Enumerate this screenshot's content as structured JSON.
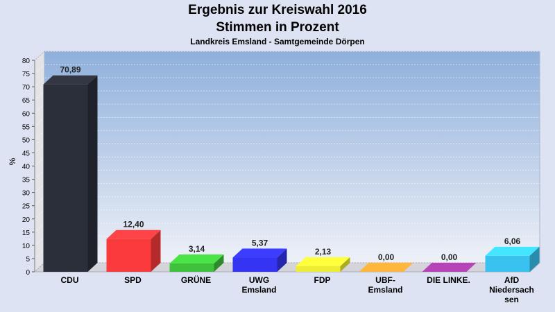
{
  "titles": {
    "line1": "Ergebnis zur Kreiswahl 2016",
    "line2": "Stimmen in Prozent",
    "subtitle": "Landkreis Emsland - Samtgemeinde Dörpen"
  },
  "chart_data": {
    "type": "bar",
    "title": "Ergebnis zur Kreiswahl 2016 Stimmen in Prozent",
    "subtitle": "Landkreis Emsland - Samtgemeinde Dörpen",
    "ylabel": "%",
    "xlabel": "",
    "ylim": [
      0,
      80
    ],
    "ytick_step": 5,
    "grid": true,
    "legend": "none",
    "categories": [
      "CDU",
      "SPD",
      "GRÜNE",
      "UWG Emsland",
      "FDP",
      "UBF-Emsland",
      "DIE LINKE.",
      "AfD Niedersachsen"
    ],
    "category_label_lines": [
      [
        "CDU"
      ],
      [
        "SPD"
      ],
      [
        "GRÜNE"
      ],
      [
        "UWG",
        "Emsland"
      ],
      [
        "FDP"
      ],
      [
        "UBF-",
        "Emsland"
      ],
      [
        "DIE LINKE."
      ],
      [
        "AfD",
        "Niedersach",
        "sen"
      ]
    ],
    "values": [
      70.89,
      12.4,
      3.14,
      5.37,
      2.13,
      0.0,
      0.0,
      6.06
    ],
    "value_labels": [
      "70,89",
      "12,40",
      "3,14",
      "5,37",
      "2,13",
      "0,00",
      "0,00",
      "6,06"
    ],
    "colors": [
      "#2b2f3a",
      "#fb3a3c",
      "#3fc13c",
      "#3434f2",
      "#eded33",
      "#f39a34",
      "#9a3a9c",
      "#39c2f0"
    ]
  }
}
